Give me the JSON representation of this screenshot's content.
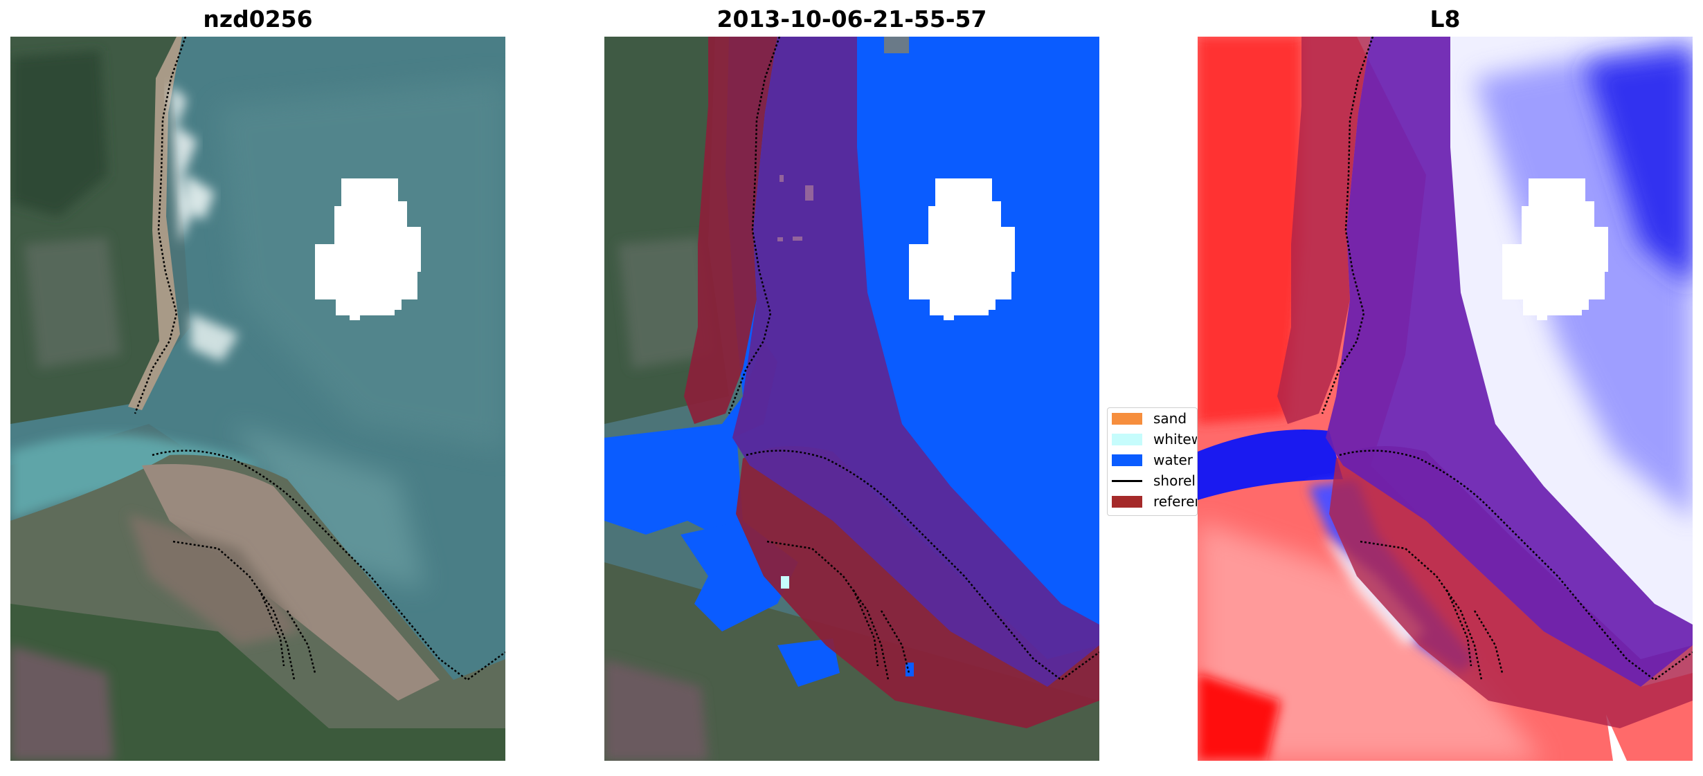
{
  "panels": [
    {
      "title": "nzd0256"
    },
    {
      "title": "2013-10-06-21-55-57"
    },
    {
      "title": "L8"
    }
  ],
  "legend": {
    "items": [
      {
        "label": "sand",
        "color": "#f68e3d"
      },
      {
        "label": "whitew",
        "color": "#c6fcfc"
      },
      {
        "label": "water",
        "color": "#0a5cff"
      },
      {
        "label": "shorel",
        "color": "#000000"
      },
      {
        "label": "referen",
        "color": "#a52a2a"
      }
    ]
  },
  "colors": {
    "water_class": "#0a5cff",
    "reference_buffer": "#8b1f3a",
    "index_positive": "#ff2020",
    "index_negative": "#1010e0",
    "cloud_mask": "#ffffff"
  }
}
